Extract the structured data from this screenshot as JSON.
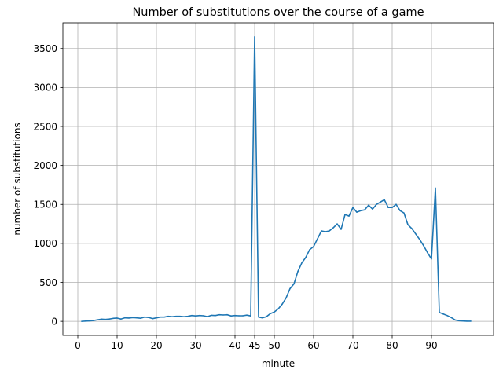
{
  "chart_data": {
    "type": "line",
    "title": "Number of substitutions over the course of a game",
    "xlabel": "minute",
    "ylabel": "number of substitutions",
    "xlim": [
      -3.8,
      105.8
    ],
    "ylim": [
      -180,
      3830
    ],
    "grid": true,
    "line_color": "#1f77b4",
    "x_ticks": [
      0,
      10,
      20,
      30,
      40,
      45,
      50,
      60,
      70,
      80,
      90
    ],
    "x_tick_labels": [
      "0",
      "10",
      "20",
      "30",
      "40",
      "45",
      "50",
      "60",
      "70",
      "80",
      "90"
    ],
    "y_ticks": [
      0,
      500,
      1000,
      1500,
      2000,
      2500,
      3000,
      3500
    ],
    "y_tick_labels": [
      "0",
      "500",
      "1000",
      "1500",
      "2000",
      "2500",
      "3000",
      "3500"
    ],
    "series": [
      {
        "x": [
          1,
          2,
          3,
          4,
          5,
          6,
          7,
          8,
          9,
          10,
          11,
          12,
          13,
          14,
          15,
          16,
          17,
          18,
          19,
          20,
          21,
          22,
          23,
          24,
          25,
          26,
          27,
          28,
          29,
          30,
          31,
          32,
          33,
          34,
          35,
          36,
          37,
          38,
          39,
          40,
          41,
          42,
          43,
          44,
          45,
          46,
          47,
          48,
          49,
          50,
          51,
          52,
          53,
          54,
          55,
          56,
          57,
          58,
          59,
          60,
          61,
          62,
          63,
          64,
          65,
          66,
          67,
          68,
          69,
          70,
          71,
          72,
          73,
          74,
          75,
          76,
          77,
          78,
          79,
          80,
          81,
          82,
          83,
          84,
          85,
          86,
          87,
          88,
          89,
          90,
          91,
          92,
          93,
          94,
          95,
          96,
          97,
          98,
          99,
          100
        ],
        "values": [
          0,
          3,
          6,
          10,
          20,
          28,
          25,
          30,
          38,
          42,
          30,
          45,
          42,
          48,
          45,
          40,
          55,
          50,
          35,
          45,
          55,
          55,
          65,
          60,
          65,
          65,
          60,
          65,
          75,
          70,
          75,
          72,
          60,
          78,
          75,
          85,
          82,
          85,
          70,
          75,
          72,
          72,
          80,
          70,
          3650,
          55,
          45,
          60,
          100,
          120,
          160,
          220,
          300,
          420,
          480,
          640,
          750,
          820,
          920,
          960,
          1060,
          1160,
          1150,
          1160,
          1200,
          1250,
          1180,
          1370,
          1350,
          1460,
          1400,
          1420,
          1430,
          1490,
          1440,
          1500,
          1530,
          1560,
          1460,
          1460,
          1500,
          1420,
          1390,
          1240,
          1190,
          1120,
          1050,
          970,
          880,
          800,
          1710,
          115,
          95,
          75,
          50,
          18,
          8,
          5,
          2,
          2
        ]
      }
    ]
  }
}
